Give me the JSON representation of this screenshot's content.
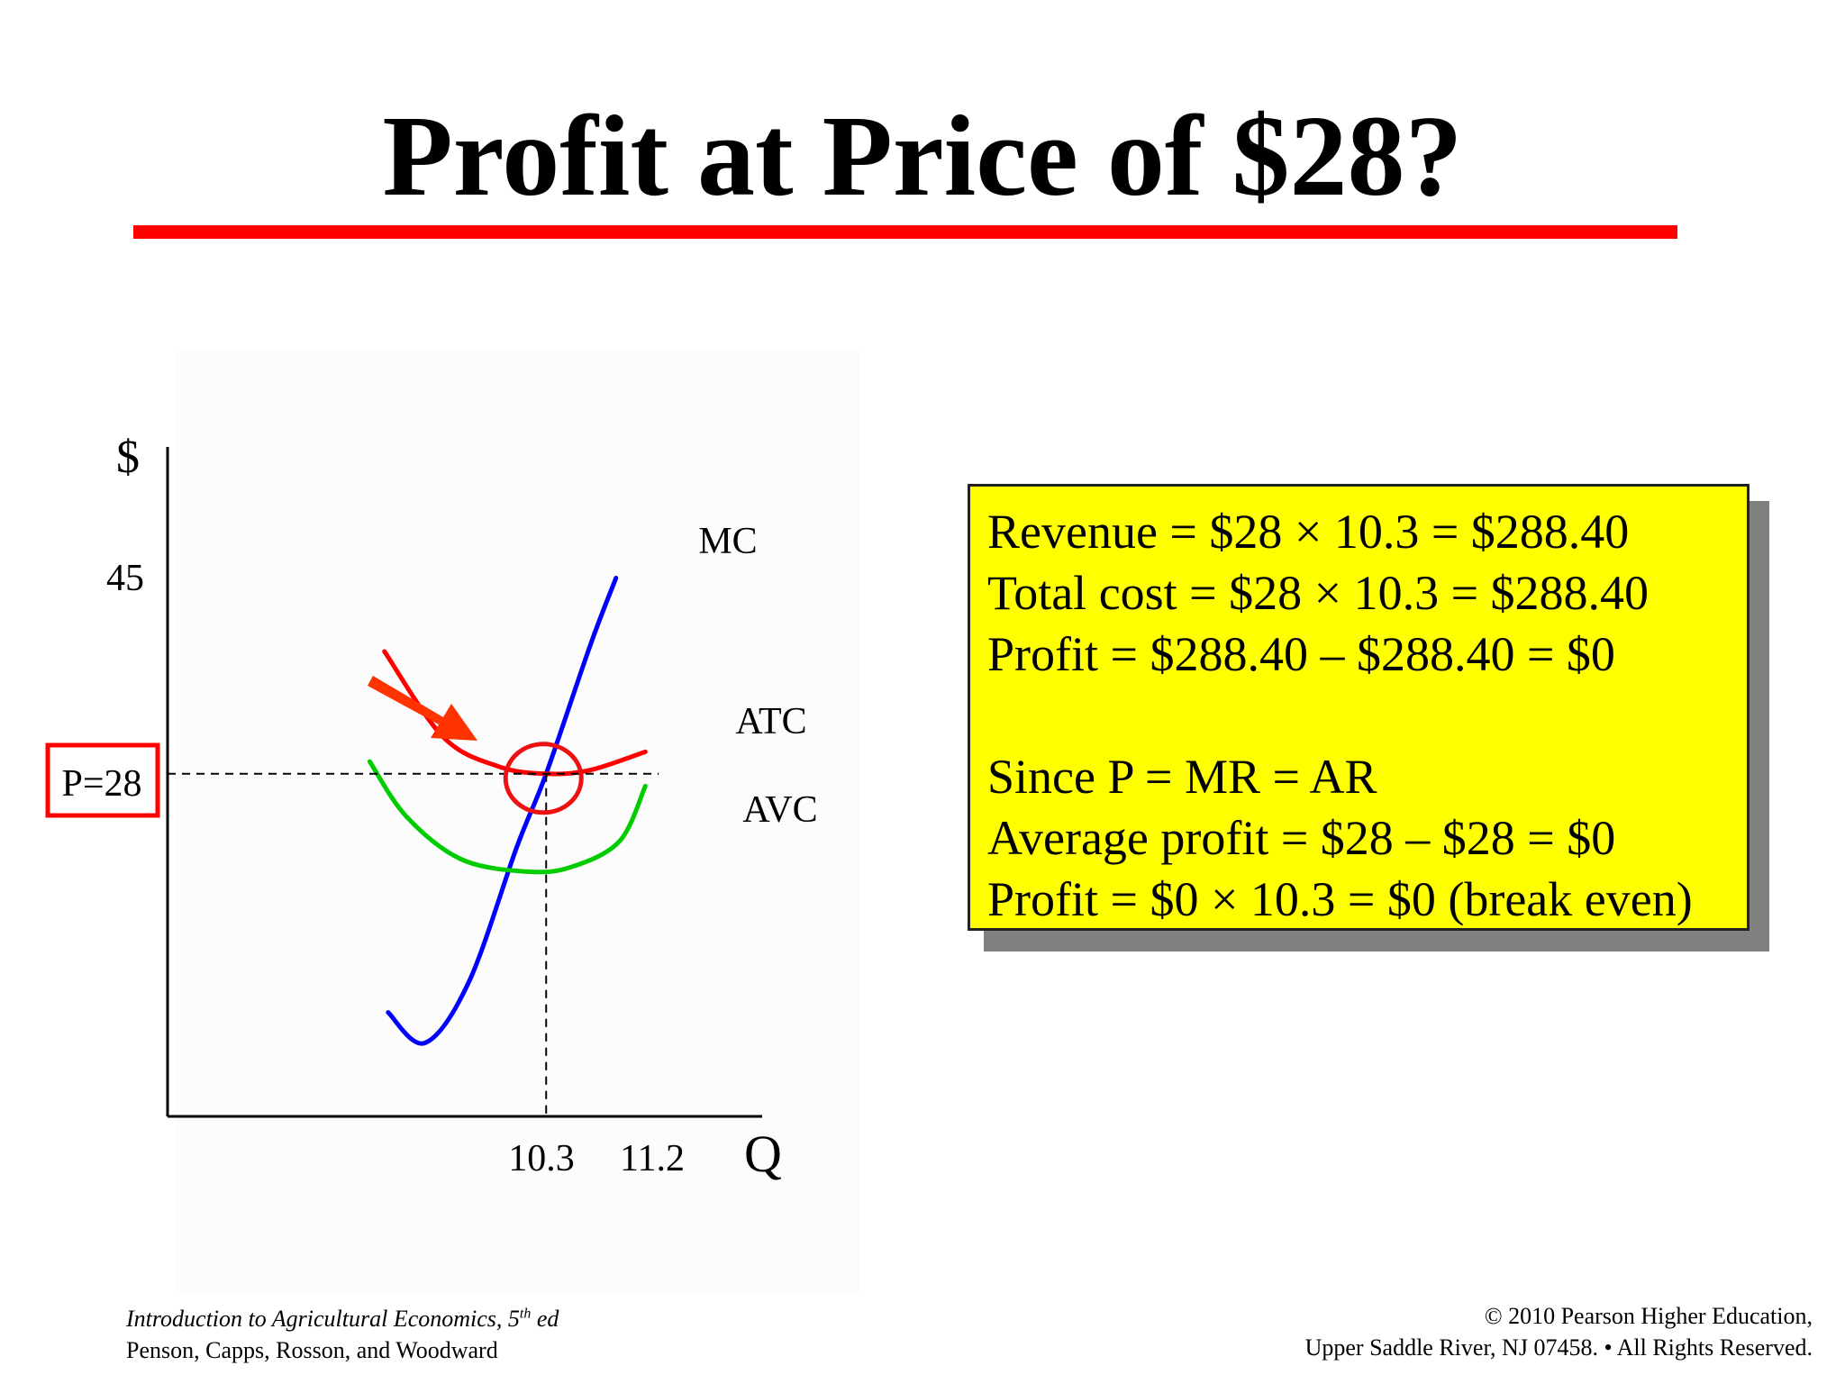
{
  "slide": {
    "title": "Profit at Price of $28?",
    "rule_color": "#ff0000"
  },
  "chart_data": {
    "type": "line",
    "xlabel": "Q",
    "ylabel": "$",
    "x_ticks": [
      "10.3",
      "11.2"
    ],
    "y_ticks": [
      "45"
    ],
    "price_label": "P=28",
    "series": [
      {
        "name": "MC",
        "color": "#0000ff",
        "points": [
          [
            6.0,
            8.5
          ],
          [
            7.0,
            6.0
          ],
          [
            8.2,
            11.0
          ],
          [
            9.5,
            22.0
          ],
          [
            10.3,
            28.0
          ],
          [
            11.5,
            38.5
          ],
          [
            12.2,
            44.0
          ]
        ]
      },
      {
        "name": "ATC",
        "color": "#ff0000",
        "points": [
          [
            5.9,
            38.0
          ],
          [
            7.5,
            31.0
          ],
          [
            9.0,
            28.6
          ],
          [
            10.3,
            28.0
          ],
          [
            11.5,
            28.3
          ],
          [
            13.0,
            29.8
          ]
        ]
      },
      {
        "name": "AVC",
        "color": "#00cc00",
        "points": [
          [
            5.5,
            29.0
          ],
          [
            6.5,
            24.5
          ],
          [
            8.0,
            21.0
          ],
          [
            9.8,
            20.0
          ],
          [
            11.0,
            20.4
          ],
          [
            12.3,
            22.5
          ],
          [
            13.0,
            27.0
          ]
        ]
      }
    ],
    "reference_lines": {
      "price": 28,
      "quantity": 10.3
    },
    "highlight": {
      "x": 10.3,
      "y": 28
    },
    "colors": {
      "price_box": "#ff0000",
      "arrow": "#ff3300",
      "circle": "#ee1111"
    }
  },
  "infobox": {
    "lines": [
      "Revenue = $28 × 10.3 = $288.40",
      "Total cost = $28 × 10.3 = $288.40",
      "Profit = $288.40 – $288.40 = $0",
      "",
      "Since P = MR = AR",
      "Average profit = $28 – $28 = $0",
      "Profit = $0 × 10.3 = $0 (break even)"
    ],
    "background": "#ffff00"
  },
  "footer": {
    "left_line1": "Introduction to Agricultural Economics, 5",
    "left_line1_sup": "th",
    "left_line1_suffix": " ed",
    "left_line2": "Penson, Capps, Rosson, and Woodward",
    "right_line1": "© 2010 Pearson Higher Education,",
    "right_line2": "Upper Saddle River, NJ 07458. • All Rights Reserved."
  }
}
